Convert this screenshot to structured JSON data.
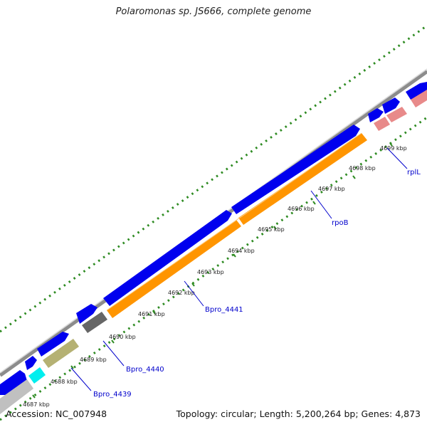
{
  "title": "Polaromonas sp. JS666, complete genome",
  "footer": {
    "accession": "Accession: NC_007948",
    "summary": "Topology: circular; Length: 5,200,264 bp; Genes: 4,873"
  },
  "colors": {
    "background": "#ffffff",
    "backbone": "#8c8c8c",
    "dots": "#2e8b22",
    "cds_forward": "#0000ee",
    "cds_reverse": "#ff9500",
    "trna_pink": "#e88a8a",
    "khaki": "#b5b173",
    "cyan": "#00eeee",
    "dark_gray": "#666666",
    "light_gray": "#c0c0c0",
    "label_blue": "#0000cc"
  },
  "tick_labels": [
    "4687 kbp",
    "4688 kbp",
    "4689 kbp",
    "4690 kbp",
    "4691 kbp",
    "4692 kbp",
    "4693 kbp",
    "4694 kbp",
    "4695 kbp",
    "4696 kbp",
    "4697 kbp",
    "4698 kbp",
    "4699 kbp"
  ],
  "gene_labels": [
    "Bpro_4439",
    "Bpro_4440",
    "Bpro_4441",
    "rpoB",
    "rplL"
  ]
}
